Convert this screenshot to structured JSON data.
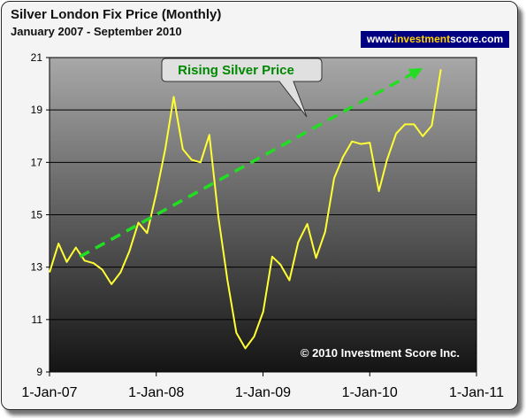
{
  "header": {
    "title": "Silver London Fix Price (Monthly)",
    "subtitle": "January 2007  - September 2010"
  },
  "website": {
    "prefix": "www.",
    "highlight": "investment",
    "suffix": "score.com"
  },
  "colors": {
    "line": "#ffff33",
    "arrow": "#22dd22",
    "callout_text": "#008800",
    "website_bg": "#000080",
    "website_accent": "#ffd200"
  },
  "chart_data": {
    "type": "line",
    "title": "Silver London Fix Price (Monthly)",
    "subtitle": "January 2007  - September 2010",
    "xlabel": "",
    "ylabel": "",
    "x_ticks": [
      "1-Jan-07",
      "1-Jan-08",
      "1-Jan-09",
      "1-Jan-10",
      "1-Jan-11"
    ],
    "y_ticks": [
      9,
      11,
      13,
      15,
      17,
      19,
      21
    ],
    "ylim": [
      9,
      21
    ],
    "xlim": [
      "2007-01-01",
      "2011-01-01"
    ],
    "grid": true,
    "legend": "none",
    "copyright": "© 2010 Investment Score Inc.",
    "callout": "Rising Silver Price",
    "trend_arrow": {
      "from": {
        "x": "2007-04-15",
        "y": 13.4
      },
      "to": {
        "x": "2010-07-01",
        "y": 20.6
      }
    },
    "series": [
      {
        "x": [
          "2007-01-01",
          "2007-02-01",
          "2007-03-01",
          "2007-04-01",
          "2007-05-01",
          "2007-06-01",
          "2007-07-01",
          "2007-08-01",
          "2007-09-01",
          "2007-10-01",
          "2007-11-01",
          "2007-12-01",
          "2008-01-01",
          "2008-02-01",
          "2008-03-01",
          "2008-04-01",
          "2008-05-01",
          "2008-06-01",
          "2008-07-01",
          "2008-08-01",
          "2008-09-01",
          "2008-10-01",
          "2008-11-01",
          "2008-12-01",
          "2009-01-01",
          "2009-02-01",
          "2009-03-01",
          "2009-04-01",
          "2009-05-01",
          "2009-06-01",
          "2009-07-01",
          "2009-08-01",
          "2009-09-01",
          "2009-10-01",
          "2009-11-01",
          "2009-12-01",
          "2010-01-01",
          "2010-02-01",
          "2010-03-01",
          "2010-04-01",
          "2010-05-01",
          "2010-06-01",
          "2010-07-01",
          "2010-08-01",
          "2010-09-01"
        ],
        "values": [
          12.8,
          13.9,
          13.2,
          13.75,
          13.25,
          13.15,
          12.9,
          12.35,
          12.8,
          13.6,
          14.7,
          14.3,
          15.8,
          17.5,
          19.5,
          17.5,
          17.1,
          17.0,
          18.05,
          14.9,
          12.5,
          10.5,
          9.9,
          10.35,
          11.3,
          13.4,
          13.1,
          12.5,
          13.95,
          14.65,
          13.35,
          14.35,
          16.4,
          17.2,
          17.8,
          17.7,
          17.75,
          15.9,
          17.1,
          18.1,
          18.45,
          18.45,
          18.0,
          18.4,
          20.55
        ]
      }
    ]
  }
}
